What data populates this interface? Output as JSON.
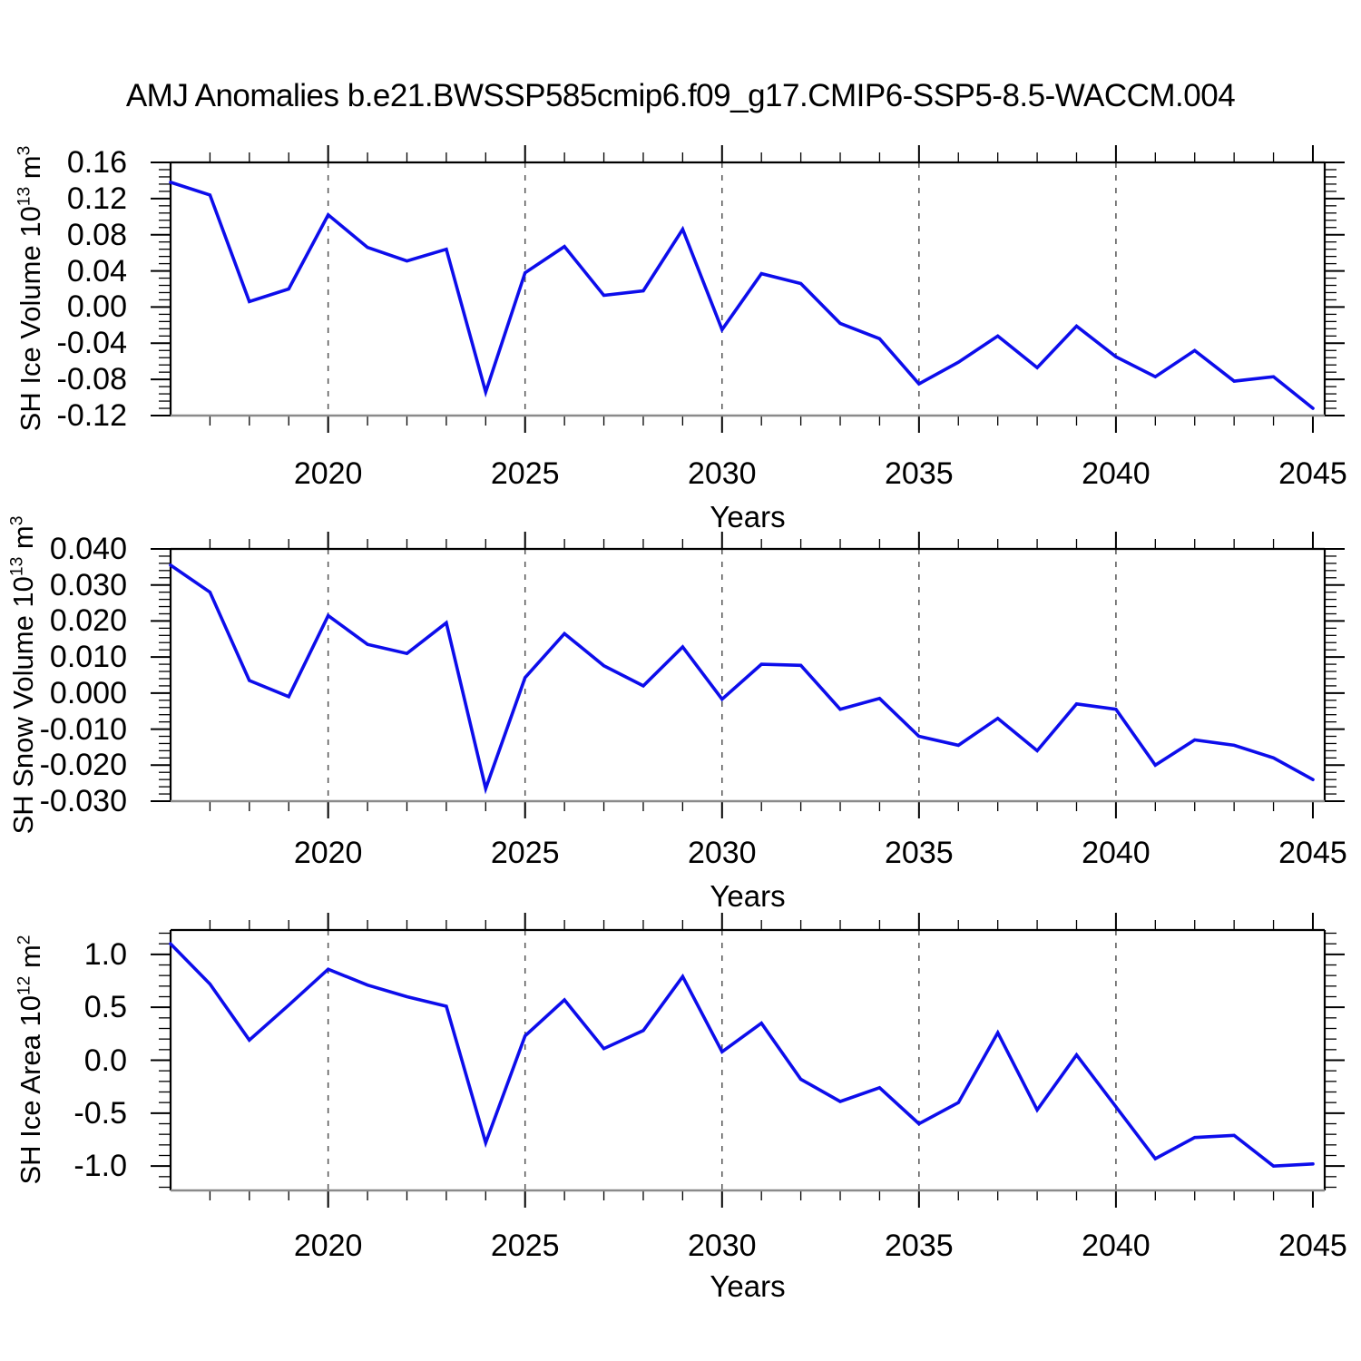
{
  "title": "AMJ Anomalies b.e21.BWSSP585cmip6.f09_g17.CMIP6-SSP5-8.5-WACCM.004",
  "xlabel": "Years",
  "line_color": "#0d0deb",
  "grid_color": "#555555",
  "axis_color": "#000000",
  "x_tick_labels": [
    "2020",
    "2025",
    "2030",
    "2035",
    "2040",
    "2045"
  ],
  "x_gridline_years": [
    2020,
    2025,
    2030,
    2035,
    2040
  ],
  "years": [
    2016,
    2017,
    2018,
    2019,
    2020,
    2021,
    2022,
    2023,
    2024,
    2025,
    2026,
    2027,
    2028,
    2029,
    2030,
    2031,
    2032,
    2033,
    2034,
    2035,
    2036,
    2037,
    2038,
    2039,
    2040,
    2041,
    2042,
    2043,
    2044,
    2045
  ],
  "chart_data": [
    {
      "type": "line",
      "name": "sh-ice-volume",
      "title": "",
      "xlabel": "Years",
      "ylabel": "SH Ice Volume 10^13 m^3",
      "ylabel_parts": {
        "base": "SH Ice Volume 10",
        "exp": "13",
        "unit": " m",
        "unit_exp": "3"
      },
      "legend": "none",
      "grid": "vertical-dashed",
      "x": [
        2016,
        2017,
        2018,
        2019,
        2020,
        2021,
        2022,
        2023,
        2024,
        2025,
        2026,
        2027,
        2028,
        2029,
        2030,
        2031,
        2032,
        2033,
        2034,
        2035,
        2036,
        2037,
        2038,
        2039,
        2040,
        2041,
        2042,
        2043,
        2044,
        2045
      ],
      "values": [
        0.138,
        0.124,
        0.006,
        0.02,
        0.102,
        0.066,
        0.051,
        0.064,
        -0.094,
        0.038,
        0.067,
        0.013,
        0.018,
        0.086,
        -0.025,
        0.037,
        0.026,
        -0.018,
        -0.035,
        -0.085,
        -0.061,
        -0.032,
        -0.067,
        -0.021,
        -0.055,
        -0.077,
        -0.048,
        -0.082,
        -0.077,
        -0.112
      ],
      "xlim": [
        2016,
        2045.3
      ],
      "ylim": [
        -0.12,
        0.16
      ],
      "ytick_labels": [
        "0.16",
        "0.12",
        "0.08",
        "0.04",
        "0.00",
        "-0.04",
        "-0.08",
        "-0.12"
      ],
      "y_minor_step": 0.008,
      "y_minor_start": 0.16
    },
    {
      "type": "line",
      "name": "sh-snow-volume",
      "title": "",
      "xlabel": "Years",
      "ylabel": "SH Snow Volume 10^13 m^3",
      "ylabel_parts": {
        "base": "SH Snow Volume 10",
        "exp": "13",
        "unit": " m",
        "unit_exp": "3"
      },
      "legend": "none",
      "grid": "vertical-dashed",
      "x": [
        2016,
        2017,
        2018,
        2019,
        2020,
        2021,
        2022,
        2023,
        2024,
        2025,
        2026,
        2027,
        2028,
        2029,
        2030,
        2031,
        2032,
        2033,
        2034,
        2035,
        2036,
        2037,
        2038,
        2039,
        2040,
        2041,
        2042,
        2043,
        2044,
        2045
      ],
      "values": [
        0.0355,
        0.028,
        0.0035,
        -0.001,
        0.0215,
        0.0135,
        0.011,
        0.0195,
        -0.0265,
        0.0043,
        0.0165,
        0.0076,
        0.002,
        0.0128,
        -0.0017,
        0.008,
        0.0077,
        -0.0045,
        -0.0015,
        -0.012,
        -0.0145,
        -0.007,
        -0.016,
        -0.003,
        -0.0045,
        -0.02,
        -0.013,
        -0.0145,
        -0.018,
        -0.024
      ],
      "xlim": [
        2016,
        2045.3
      ],
      "ylim": [
        -0.03,
        0.04
      ],
      "ytick_labels": [
        "0.040",
        "0.030",
        "0.020",
        "0.010",
        "0.000",
        "-0.010",
        "-0.020",
        "-0.030"
      ],
      "y_minor_step": 0.002,
      "y_minor_start": 0.04
    },
    {
      "type": "line",
      "name": "sh-ice-area",
      "title": "",
      "xlabel": "Years",
      "ylabel": "SH Ice Area 10^12 m^2",
      "ylabel_parts": {
        "base": "SH Ice Area 10",
        "exp": "12",
        "unit": " m",
        "unit_exp": "2"
      },
      "legend": "none",
      "grid": "vertical-dashed",
      "x": [
        2016,
        2017,
        2018,
        2019,
        2020,
        2021,
        2022,
        2023,
        2024,
        2025,
        2026,
        2027,
        2028,
        2029,
        2030,
        2031,
        2032,
        2033,
        2034,
        2035,
        2036,
        2037,
        2038,
        2039,
        2040,
        2041,
        2042,
        2043,
        2044,
        2045
      ],
      "values": [
        1.1,
        0.72,
        0.19,
        0.52,
        0.86,
        0.71,
        0.6,
        0.51,
        -0.78,
        0.23,
        0.57,
        0.11,
        0.28,
        0.79,
        0.08,
        0.35,
        -0.18,
        -0.39,
        -0.26,
        -0.6,
        -0.4,
        0.26,
        -0.47,
        0.05,
        -0.44,
        -0.93,
        -0.73,
        -0.71,
        -1.0,
        -0.98
      ],
      "xlim": [
        2016,
        2045.3
      ],
      "ylim": [
        -1.23,
        1.23
      ],
      "ytick_labels": [
        "1.0",
        "0.5",
        "0.0",
        "-0.5",
        "-1.0"
      ],
      "y_minor_step": 0.1,
      "y_minor_start": 1.2
    }
  ]
}
